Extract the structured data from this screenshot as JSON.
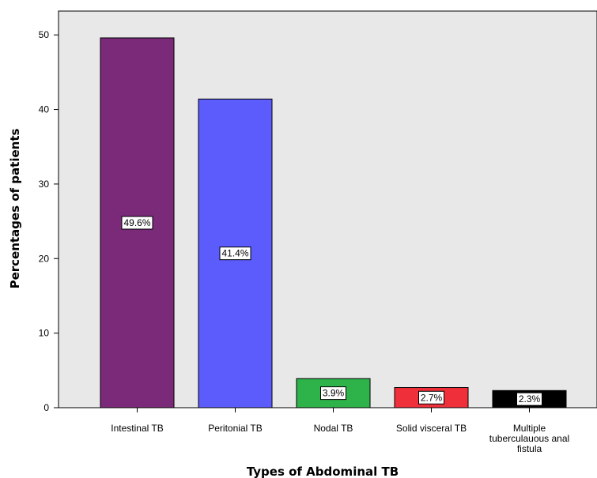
{
  "chart_data": {
    "type": "bar",
    "title": "",
    "xlabel": "Types of Abdominal TB",
    "ylabel": "Percentages of patients",
    "ylim": [
      0,
      53.2
    ],
    "yticks": [
      "0",
      "10",
      "20",
      "30",
      "40",
      "50"
    ],
    "categories": [
      [
        "Intestinal TB"
      ],
      [
        "Peritonial TB"
      ],
      [
        "Nodal TB"
      ],
      [
        "Solid visceral TB"
      ],
      [
        "Multiple",
        "tuberculauous anal",
        "fistula"
      ]
    ],
    "values": [
      49.6,
      41.4,
      3.9,
      2.7,
      2.3
    ],
    "data_labels": [
      "49.6%",
      "41.4%",
      "3.9%",
      "2.7%",
      "2.3%"
    ],
    "colors": [
      "#7a2a78",
      "#5b5cfb",
      "#2eb24a",
      "#ef2f3a",
      "#000000"
    ],
    "plot_background": "#e8e8e8",
    "grid": false,
    "legend": "none"
  }
}
